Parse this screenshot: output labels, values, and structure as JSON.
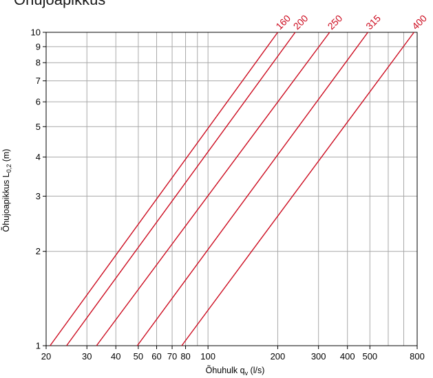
{
  "title": "Õhujoapikkus",
  "chart_data": {
    "type": "line",
    "x_scale": "log",
    "y_scale": "log",
    "xlim": [
      20,
      800
    ],
    "ylim": [
      1,
      10
    ],
    "grid": true,
    "xlabel_text": "Õhuhulk q",
    "xlabel_sub": "v",
    "xlabel_unit": " (l/s)",
    "ylabel_text": "Õhujoapikkus L",
    "ylabel_sub": "0,2",
    "ylabel_unit": " (m)",
    "x_ticks": [
      20,
      30,
      40,
      50,
      60,
      70,
      80,
      100,
      200,
      300,
      400,
      500,
      800
    ],
    "x_tick_labels": [
      "20",
      "30",
      "40",
      "50",
      "60",
      "70",
      "80",
      "100",
      "200",
      "300",
      "400",
      "500",
      "800"
    ],
    "x_minor_grid": [
      90,
      600,
      700
    ],
    "y_ticks": [
      1,
      2,
      3,
      4,
      5,
      6,
      7,
      8,
      9,
      10
    ],
    "y_tick_labels": [
      "1",
      "2",
      "3",
      "4",
      "5",
      "6",
      "7",
      "8",
      "9",
      "10"
    ],
    "line_color": "#cc0a1e",
    "series": [
      {
        "name": "160",
        "x": [
          20.8,
          200
        ],
        "y": [
          1,
          10
        ]
      },
      {
        "name": "200",
        "x": [
          24.5,
          238
        ],
        "y": [
          1,
          10
        ]
      },
      {
        "name": "250",
        "x": [
          33,
          335
        ],
        "y": [
          1,
          10
        ]
      },
      {
        "name": "315",
        "x": [
          49.5,
          490
        ],
        "y": [
          1,
          10
        ]
      },
      {
        "name": "400",
        "x": [
          77,
          775
        ],
        "y": [
          1,
          10
        ]
      }
    ]
  }
}
